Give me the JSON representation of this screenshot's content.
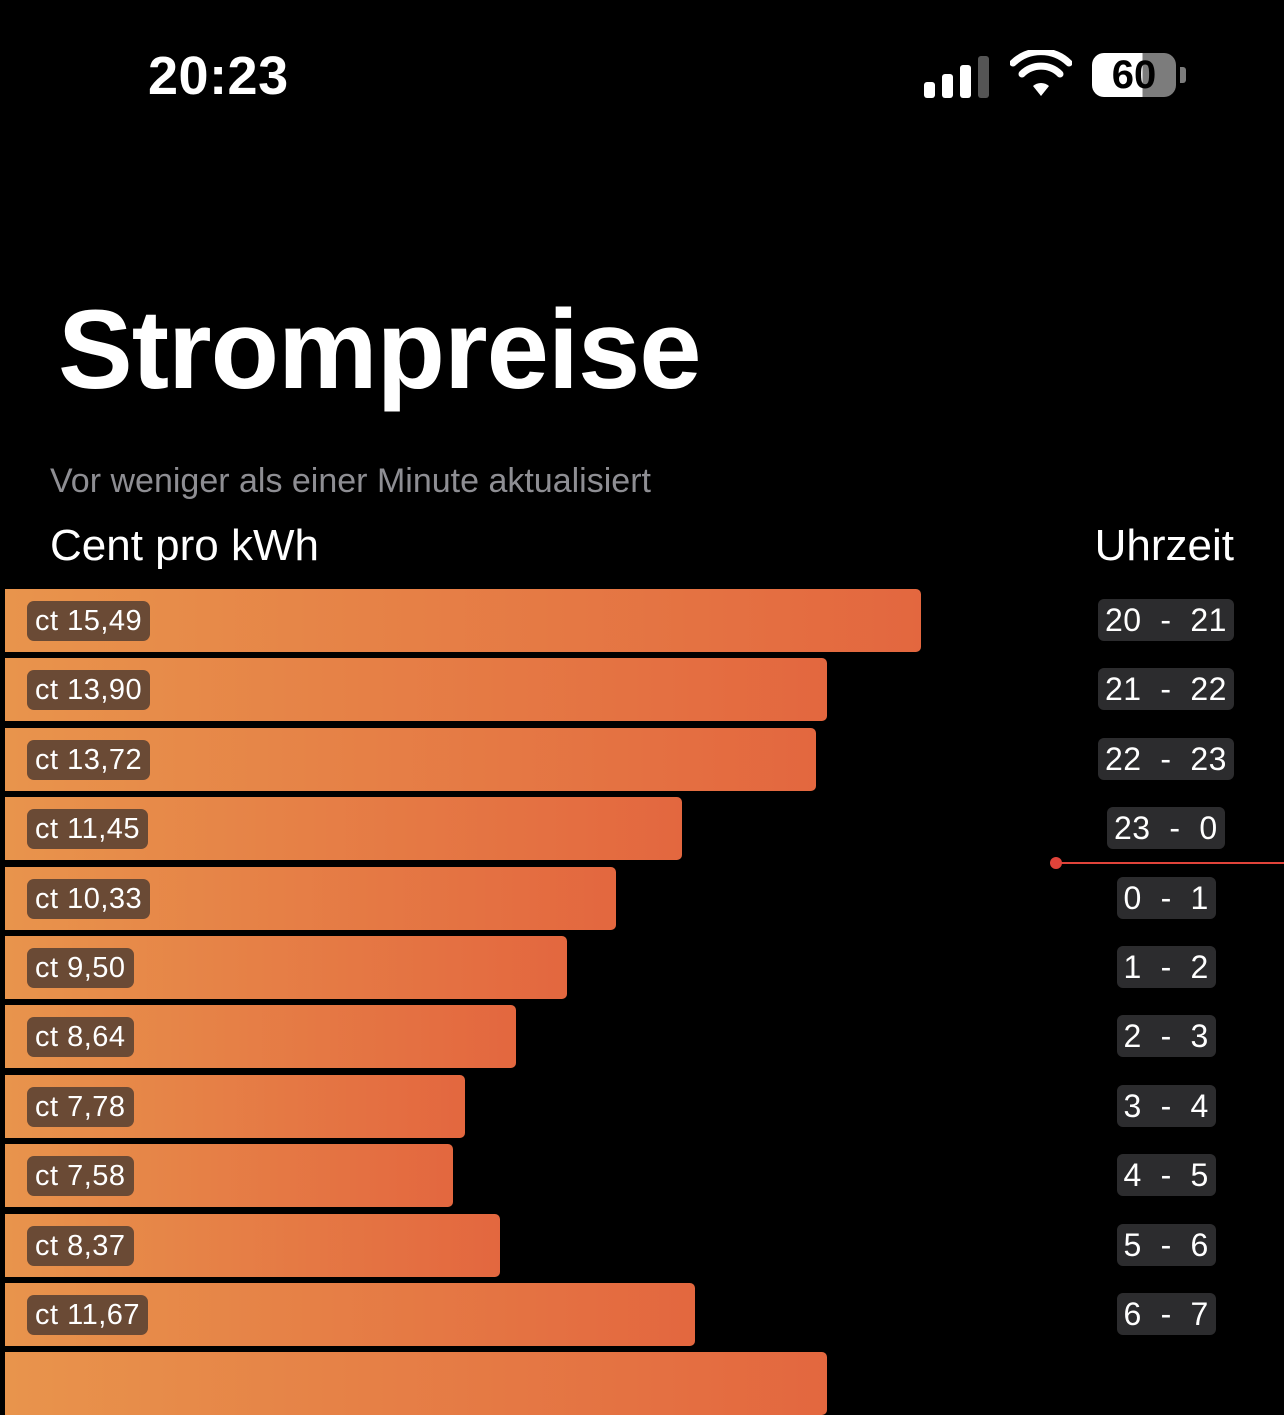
{
  "status_bar": {
    "time": "20:23",
    "battery": "60",
    "icons": [
      "cellular-signal-icon",
      "wifi-icon",
      "battery-icon"
    ]
  },
  "header": {
    "title": "Strompreise",
    "updated": "Vor weniger als einer Minute aktualisiert",
    "left_label": "Cent pro kWh",
    "right_label": "Uhrzeit"
  },
  "current_hour_marker": "23 - 0",
  "colors": {
    "bar_start": "#e8944c",
    "bar_end": "#e3673f",
    "now_marker": "#e0433a",
    "hour_badge_bg": "#2c2c2e",
    "price_badge_bg": "#6a4a35"
  },
  "chart_data": {
    "type": "bar",
    "orientation": "horizontal",
    "xlim": [
      0,
      15.49
    ],
    "rows": [
      {
        "hour": "20  -  21",
        "price": 15.49,
        "label": "ct 15,49"
      },
      {
        "hour": "21  -  22",
        "price": 13.9,
        "label": "ct 13,90"
      },
      {
        "hour": "22  -  23",
        "price": 13.72,
        "label": "ct 13,72"
      },
      {
        "hour": "23  -  0",
        "price": 11.45,
        "label": "ct 11,45"
      },
      {
        "hour": "0  -  1",
        "price": 10.33,
        "label": "ct 10,33"
      },
      {
        "hour": "1  -  2",
        "price": 9.5,
        "label": "ct 9,50"
      },
      {
        "hour": "2  -  3",
        "price": 8.64,
        "label": "ct 8,64"
      },
      {
        "hour": "3  -  4",
        "price": 7.78,
        "label": "ct 7,78"
      },
      {
        "hour": "4  -  5",
        "price": 7.58,
        "label": "ct 7,58"
      },
      {
        "hour": "5  -  6",
        "price": 8.37,
        "label": "ct 8,37"
      },
      {
        "hour": "6  -  7",
        "price": 11.67,
        "label": "ct 11,67"
      }
    ]
  }
}
